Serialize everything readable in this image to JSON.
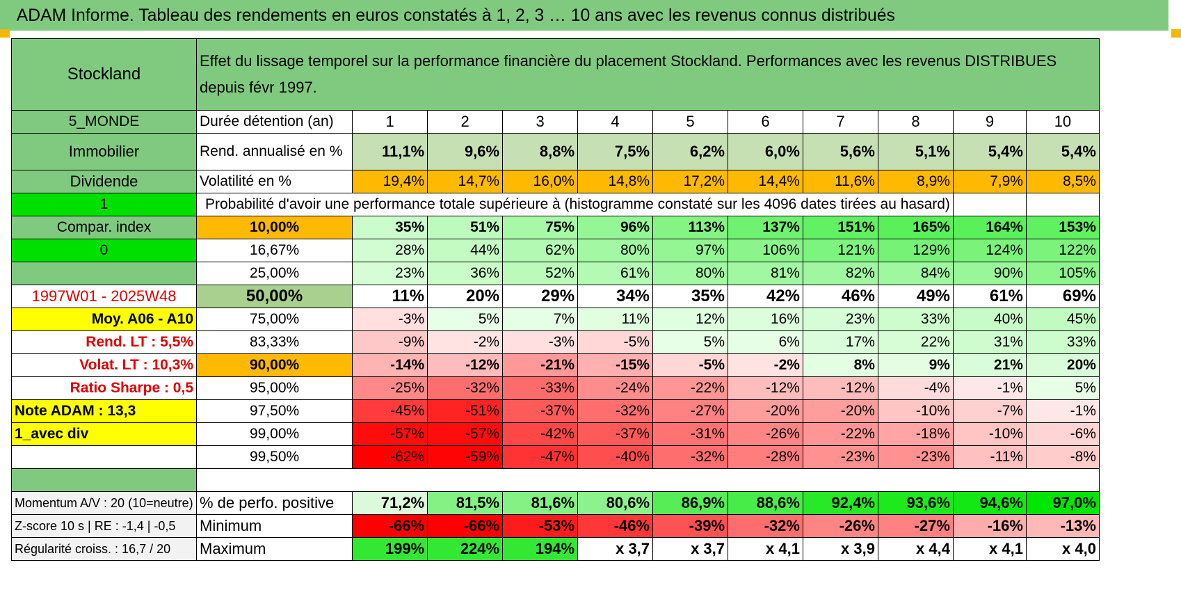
{
  "title": "ADAM Informe. Tableau des rendements en euros constatés à 1, 2, 3 … 10 ans avec les revenus connus distribués",
  "header": {
    "name": "Stockland",
    "description": "Effet du lissage temporel sur la performance financière du placement Stockland. Performances avec les revenus DISTRIBUES depuis févr 1997."
  },
  "sidebar": {
    "region": "5_MONDE",
    "sector": "Immobilier",
    "style": "Dividende",
    "flag1": "1",
    "compar_index": "Compar. index",
    "flag0": "0",
    "period": "1997W01 - 2025W48",
    "moy": "Moy. A06 - A10",
    "rend_lt": "Rend. LT :    5,5%",
    "volat_lt": "Volat. LT :    10,3%",
    "sharpe": "Ratio Sharpe :    0,5",
    "note": "Note ADAM : 13,3",
    "avec_div": "1_avec div"
  },
  "durations_label": "Durée détention (an)",
  "durations": [
    "1",
    "2",
    "3",
    "4",
    "5",
    "6",
    "7",
    "8",
    "9",
    "10"
  ],
  "rend_label": "Rend. annualisé en %",
  "rend": [
    "11,1%",
    "9,6%",
    "8,8%",
    "7,5%",
    "6,2%",
    "6,0%",
    "5,6%",
    "5,1%",
    "5,4%",
    "5,4%"
  ],
  "vol_label": "Volatilité en %",
  "vol": [
    "19,4%",
    "14,7%",
    "16,0%",
    "14,8%",
    "17,2%",
    "14,4%",
    "11,6%",
    "8,9%",
    "7,9%",
    "8,5%"
  ],
  "prob_label": "Probabilité d'avoir une performance totale supérieure à (histogramme constaté sur les 4096 dates tirées au hasard)",
  "quantiles": [
    {
      "label": "10,00%",
      "values": [
        "35%",
        "51%",
        "75%",
        "96%",
        "113%",
        "137%",
        "151%",
        "165%",
        "164%",
        "153%"
      ]
    },
    {
      "label": "16,67%",
      "values": [
        "28%",
        "44%",
        "62%",
        "80%",
        "97%",
        "106%",
        "121%",
        "129%",
        "124%",
        "122%"
      ]
    },
    {
      "label": "25,00%",
      "values": [
        "23%",
        "36%",
        "52%",
        "61%",
        "80%",
        "81%",
        "82%",
        "84%",
        "90%",
        "105%"
      ]
    },
    {
      "label": "50,00%",
      "values": [
        "11%",
        "20%",
        "29%",
        "34%",
        "35%",
        "42%",
        "46%",
        "49%",
        "61%",
        "69%"
      ]
    },
    {
      "label": "75,00%",
      "values": [
        "-3%",
        "5%",
        "7%",
        "11%",
        "12%",
        "16%",
        "23%",
        "33%",
        "40%",
        "45%"
      ]
    },
    {
      "label": "83,33%",
      "values": [
        "-9%",
        "-2%",
        "-3%",
        "-5%",
        "5%",
        "6%",
        "17%",
        "22%",
        "31%",
        "33%"
      ]
    },
    {
      "label": "90,00%",
      "values": [
        "-14%",
        "-12%",
        "-21%",
        "-15%",
        "-5%",
        "-2%",
        "8%",
        "9%",
        "21%",
        "20%"
      ]
    },
    {
      "label": "95,00%",
      "values": [
        "-25%",
        "-32%",
        "-33%",
        "-24%",
        "-22%",
        "-12%",
        "-12%",
        "-4%",
        "-1%",
        "5%"
      ]
    },
    {
      "label": "97,50%",
      "values": [
        "-45%",
        "-51%",
        "-37%",
        "-32%",
        "-27%",
        "-20%",
        "-20%",
        "-10%",
        "-7%",
        "-1%"
      ]
    },
    {
      "label": "99,00%",
      "values": [
        "-57%",
        "-57%",
        "-42%",
        "-37%",
        "-31%",
        "-26%",
        "-22%",
        "-18%",
        "-10%",
        "-6%"
      ]
    },
    {
      "label": "99,50%",
      "values": [
        "-62%",
        "-59%",
        "-47%",
        "-40%",
        "-32%",
        "-28%",
        "-23%",
        "-23%",
        "-11%",
        "-8%"
      ]
    }
  ],
  "stats": [
    {
      "side": "Momentum A/V : 20 (10=neutre)",
      "label": "% de perfo. positive",
      "values": [
        "71,2%",
        "81,5%",
        "81,6%",
        "80,6%",
        "86,9%",
        "88,6%",
        "92,4%",
        "93,6%",
        "94,6%",
        "97,0%"
      ]
    },
    {
      "side": "Z-score 10 s | RE : -1,4 | -0,5",
      "label": "Minimum",
      "values": [
        "-66%",
        "-66%",
        "-53%",
        "-46%",
        "-39%",
        "-32%",
        "-26%",
        "-27%",
        "-16%",
        "-13%"
      ]
    },
    {
      "side": "Régularité croiss. : 16,7 / 20",
      "label": "Maximum",
      "values": [
        "199%",
        "224%",
        "194%",
        "x 3,7",
        "x 3,7",
        "x 4,1",
        "x 3,9",
        "x 4,4",
        "x 4,1",
        "x 4,0"
      ]
    }
  ],
  "colors": {
    "header_green": "#7fca7f",
    "bright_green": "#00e000",
    "yellow": "#ffff00",
    "orange": "#ffb900",
    "red_text": "#e00000"
  }
}
